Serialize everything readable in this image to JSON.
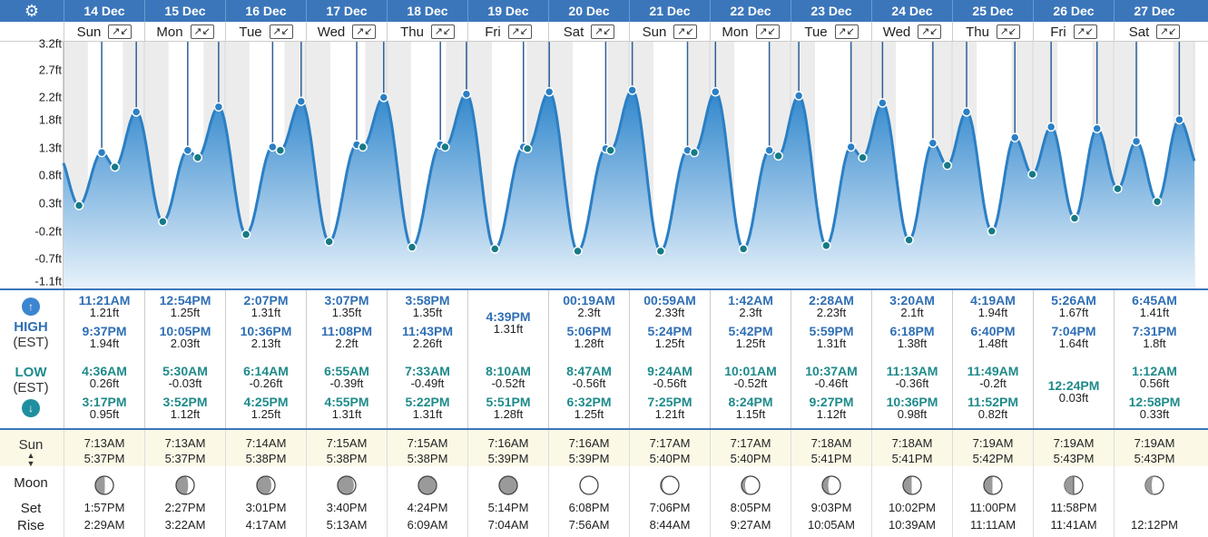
{
  "header": {
    "dates": [
      "14 Dec",
      "15 Dec",
      "16 Dec",
      "17 Dec",
      "18 Dec",
      "19 Dec",
      "20 Dec",
      "21 Dec",
      "22 Dec",
      "23 Dec",
      "24 Dec",
      "25 Dec",
      "26 Dec",
      "27 Dec"
    ],
    "days": [
      "Sun",
      "Mon",
      "Tue",
      "Wed",
      "Thu",
      "Fri",
      "Sat",
      "Sun",
      "Mon",
      "Tue",
      "Wed",
      "Thu",
      "Fri",
      "Sat"
    ],
    "expand_icon": "↗↙"
  },
  "labels": {
    "high": "HIGH",
    "low": "LOW",
    "tz": "(EST)",
    "sun": "Sun",
    "moon": "Moon",
    "set": "Set",
    "rise": "Rise"
  },
  "colors": {
    "header": "#3b76bb",
    "curve": "#2b7fc4",
    "fill_top": "#2f86cc",
    "fill_bottom": "#e8f2fb",
    "point": "#167a86",
    "high_text": "#2f6fb5",
    "low_text": "#1f8a8a",
    "sun_bg": "#fbf8e6"
  },
  "chart_data": {
    "type": "area",
    "ylim": [
      -1.1,
      3.2
    ],
    "yticks": [
      "3.2ft",
      "2.7ft",
      "2.2ft",
      "1.8ft",
      "1.3ft",
      "0.8ft",
      "0.3ft",
      "-0.2ft",
      "-0.7ft",
      "-1.1ft"
    ],
    "ytick_values": [
      3.2,
      2.7,
      2.2,
      1.8,
      1.3,
      0.8,
      0.3,
      -0.2,
      -0.7,
      -1.1
    ],
    "days": [
      {
        "high": [
          {
            "time": "11:21AM",
            "height": "1.21ft"
          },
          {
            "time": "9:37PM",
            "height": "1.94ft"
          }
        ],
        "low": [
          {
            "time": "4:36AM",
            "height": "0.26ft"
          },
          {
            "time": "3:17PM",
            "height": "0.95ft"
          }
        ]
      },
      {
        "high": [
          {
            "time": "12:54PM",
            "height": "1.25ft"
          },
          {
            "time": "10:05PM",
            "height": "2.03ft"
          }
        ],
        "low": [
          {
            "time": "5:30AM",
            "height": "-0.03ft"
          },
          {
            "time": "3:52PM",
            "height": "1.12ft"
          }
        ]
      },
      {
        "high": [
          {
            "time": "2:07PM",
            "height": "1.31ft"
          },
          {
            "time": "10:36PM",
            "height": "2.13ft"
          }
        ],
        "low": [
          {
            "time": "6:14AM",
            "height": "-0.26ft"
          },
          {
            "time": "4:25PM",
            "height": "1.25ft"
          }
        ]
      },
      {
        "high": [
          {
            "time": "3:07PM",
            "height": "1.35ft"
          },
          {
            "time": "11:08PM",
            "height": "2.2ft"
          }
        ],
        "low": [
          {
            "time": "6:55AM",
            "height": "-0.39ft"
          },
          {
            "time": "4:55PM",
            "height": "1.31ft"
          }
        ]
      },
      {
        "high": [
          {
            "time": "3:58PM",
            "height": "1.35ft"
          },
          {
            "time": "11:43PM",
            "height": "2.26ft"
          }
        ],
        "low": [
          {
            "time": "7:33AM",
            "height": "-0.49ft"
          },
          {
            "time": "5:22PM",
            "height": "1.31ft"
          }
        ]
      },
      {
        "high": [
          {
            "time": "4:39PM",
            "height": "1.31ft"
          }
        ],
        "low": [
          {
            "time": "8:10AM",
            "height": "-0.52ft"
          },
          {
            "time": "5:51PM",
            "height": "1.28ft"
          }
        ]
      },
      {
        "high": [
          {
            "time": "00:19AM",
            "height": "2.3ft"
          },
          {
            "time": "5:06PM",
            "height": "1.28ft"
          }
        ],
        "low": [
          {
            "time": "8:47AM",
            "height": "-0.56ft"
          },
          {
            "time": "6:32PM",
            "height": "1.25ft"
          }
        ]
      },
      {
        "high": [
          {
            "time": "00:59AM",
            "height": "2.33ft"
          },
          {
            "time": "5:24PM",
            "height": "1.25ft"
          }
        ],
        "low": [
          {
            "time": "9:24AM",
            "height": "-0.56ft"
          },
          {
            "time": "7:25PM",
            "height": "1.21ft"
          }
        ]
      },
      {
        "high": [
          {
            "time": "1:42AM",
            "height": "2.3ft"
          },
          {
            "time": "5:42PM",
            "height": "1.25ft"
          }
        ],
        "low": [
          {
            "time": "10:01AM",
            "height": "-0.52ft"
          },
          {
            "time": "8:24PM",
            "height": "1.15ft"
          }
        ]
      },
      {
        "high": [
          {
            "time": "2:28AM",
            "height": "2.23ft"
          },
          {
            "time": "5:59PM",
            "height": "1.31ft"
          }
        ],
        "low": [
          {
            "time": "10:37AM",
            "height": "-0.46ft"
          },
          {
            "time": "9:27PM",
            "height": "1.12ft"
          }
        ]
      },
      {
        "high": [
          {
            "time": "3:20AM",
            "height": "2.1ft"
          },
          {
            "time": "6:18PM",
            "height": "1.38ft"
          }
        ],
        "low": [
          {
            "time": "11:13AM",
            "height": "-0.36ft"
          },
          {
            "time": "10:36PM",
            "height": "0.98ft"
          }
        ]
      },
      {
        "high": [
          {
            "time": "4:19AM",
            "height": "1.94ft"
          },
          {
            "time": "6:40PM",
            "height": "1.48ft"
          }
        ],
        "low": [
          {
            "time": "11:49AM",
            "height": "-0.2ft"
          },
          {
            "time": "11:52PM",
            "height": "0.82ft"
          }
        ]
      },
      {
        "high": [
          {
            "time": "5:26AM",
            "height": "1.67ft"
          },
          {
            "time": "7:04PM",
            "height": "1.64ft"
          }
        ],
        "low": [
          {
            "time": "12:24PM",
            "height": "0.03ft"
          }
        ]
      },
      {
        "high": [
          {
            "time": "6:45AM",
            "height": "1.41ft"
          },
          {
            "time": "7:31PM",
            "height": "1.8ft"
          }
        ],
        "low": [
          {
            "time": "1:12AM",
            "height": "0.56ft"
          },
          {
            "time": "12:58PM",
            "height": "0.33ft"
          }
        ]
      }
    ]
  },
  "sun": [
    {
      "rise": "7:13AM",
      "set": "5:37PM"
    },
    {
      "rise": "7:13AM",
      "set": "5:37PM"
    },
    {
      "rise": "7:14AM",
      "set": "5:38PM"
    },
    {
      "rise": "7:15AM",
      "set": "5:38PM"
    },
    {
      "rise": "7:15AM",
      "set": "5:38PM"
    },
    {
      "rise": "7:16AM",
      "set": "5:39PM"
    },
    {
      "rise": "7:16AM",
      "set": "5:39PM"
    },
    {
      "rise": "7:17AM",
      "set": "5:40PM"
    },
    {
      "rise": "7:17AM",
      "set": "5:40PM"
    },
    {
      "rise": "7:18AM",
      "set": "5:41PM"
    },
    {
      "rise": "7:18AM",
      "set": "5:41PM"
    },
    {
      "rise": "7:19AM",
      "set": "5:42PM"
    },
    {
      "rise": "7:19AM",
      "set": "5:43PM"
    },
    {
      "rise": "7:19AM",
      "set": "5:43PM"
    }
  ],
  "moon": [
    {
      "set": "1:57PM",
      "rise": "2:29AM",
      "phase": "waning-crescent-30"
    },
    {
      "set": "2:27PM",
      "rise": "3:22AM",
      "phase": "waning-crescent-20"
    },
    {
      "set": "3:01PM",
      "rise": "4:17AM",
      "phase": "waning-crescent-12"
    },
    {
      "set": "3:40PM",
      "rise": "5:13AM",
      "phase": "waning-crescent-6"
    },
    {
      "set": "4:24PM",
      "rise": "6:09AM",
      "phase": "waning-crescent-2"
    },
    {
      "set": "5:14PM",
      "rise": "7:04AM",
      "phase": "new-moon"
    },
    {
      "set": "6:08PM",
      "rise": "7:56AM",
      "phase": "waxing-crescent-2"
    },
    {
      "set": "7:06PM",
      "rise": "8:44AM",
      "phase": "waxing-crescent-6"
    },
    {
      "set": "8:05PM",
      "rise": "9:27AM",
      "phase": "waxing-crescent-12"
    },
    {
      "set": "9:03PM",
      "rise": "10:05AM",
      "phase": "waxing-crescent-20"
    },
    {
      "set": "10:02PM",
      "rise": "10:39AM",
      "phase": "waxing-crescent-30"
    },
    {
      "set": "11:00PM",
      "rise": "11:11AM",
      "phase": "waxing-crescent-40"
    },
    {
      "set": "11:58PM",
      "rise": "11:41AM",
      "phase": "first-quarter"
    },
    {
      "set": "",
      "rise": "12:12PM",
      "phase": "waxing-gibbous-55"
    }
  ]
}
